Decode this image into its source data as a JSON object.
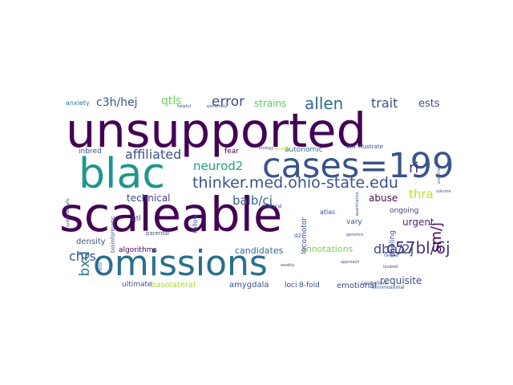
{
  "word_cloud": {
    "words": [
      {
        "text": "unsupported",
        "color": "#440154"
      },
      {
        "text": "scaleable",
        "color": "#440154"
      },
      {
        "text": "omissions",
        "color": "#2a6f8e"
      },
      {
        "text": "cases=199",
        "color": "#3a548c"
      },
      {
        "text": "blac",
        "color": "#1f968b"
      },
      {
        "text": "thinker.med.ohio-state.edu",
        "color": "#3b528b"
      },
      {
        "text": "c57bl/6j",
        "color": "#46337e"
      },
      {
        "text": "allen",
        "color": "#31688e"
      },
      {
        "text": "error",
        "color": "#3e4a89"
      },
      {
        "text": "affiliated",
        "color": "#3b528b"
      },
      {
        "text": "neurod2",
        "color": "#1fa187"
      },
      {
        "text": "balb/cj",
        "color": "#34618d"
      },
      {
        "text": "dba/2j",
        "color": "#3e4989"
      },
      {
        "text": "sm/j",
        "color": "#440154"
      },
      {
        "text": "bxd",
        "color": "#2a788e"
      },
      {
        "text": "chrs",
        "color": "#3b528b"
      },
      {
        "text": "c3h/hej",
        "color": "#39568c"
      },
      {
        "text": "qtls",
        "color": "#6ece58"
      },
      {
        "text": "trait",
        "color": "#3b528b"
      },
      {
        "text": "ests",
        "color": "#3b528b"
      },
      {
        "text": "ri",
        "color": "#46337e"
      },
      {
        "text": "thra",
        "color": "#bddf26"
      },
      {
        "text": "requisite",
        "color": "#3e4a89"
      },
      {
        "text": "strains",
        "color": "#5ec962"
      },
      {
        "text": "technical",
        "color": "#414487"
      },
      {
        "text": "abuse",
        "color": "#471063"
      },
      {
        "text": "urgent",
        "color": "#482878"
      },
      {
        "text": "annotations",
        "color": "#7ad151"
      },
      {
        "text": "candidates",
        "color": "#31688e"
      },
      {
        "text": "emotional",
        "color": "#3e4a89"
      },
      {
        "text": "basolateral",
        "color": "#a5db36"
      },
      {
        "text": "amygdala",
        "color": "#3b528b"
      },
      {
        "text": "loci",
        "color": "#443983"
      },
      {
        "text": "8-fold",
        "color": "#3b528b"
      },
      {
        "text": "ultimate",
        "color": "#3b528b"
      },
      {
        "text": "algorithms",
        "color": "#440154"
      },
      {
        "text": "density",
        "color": "#3b528b"
      },
      {
        "text": "inbred",
        "color": "#3b528b"
      },
      {
        "text": "fear",
        "color": "#440154"
      },
      {
        "text": "autonomic",
        "color": "#2d708e"
      },
      {
        "text": "ongoing",
        "color": "#433e85"
      },
      {
        "text": "pooling",
        "color": "#3b528b"
      },
      {
        "text": "locomotor",
        "color": "#3b528b"
      },
      {
        "text": "vary",
        "color": "#3b528b"
      },
      {
        "text": "qtl",
        "color": "#3b528b"
      },
      {
        "text": "follow",
        "color": "#3b528b"
      },
      {
        "text": "anxiety",
        "color": "#2a788e"
      },
      {
        "text": "atlas",
        "color": "#3b528b"
      },
      {
        "text": "chr",
        "color": "#3b528b"
      },
      {
        "text": "illustrate",
        "color": "#3b528b"
      },
      {
        "text": "d2",
        "color": "#3b528b"
      },
      {
        "text": "quality",
        "color": "#b5de2b"
      },
      {
        "text": "parental",
        "color": "#3b528b"
      },
      {
        "text": "cerebellum",
        "color": "#3b528b"
      },
      {
        "text": "chromosomal",
        "color": "#3b528b"
      },
      {
        "text": "bilateral",
        "color": "#3b528b"
      },
      {
        "text": "biology",
        "color": "#3b528b"
      },
      {
        "text": "ranged",
        "color": "#3b528b"
      },
      {
        "text": "located",
        "color": "#3b528b"
      },
      {
        "text": "volume",
        "color": "#3b528b"
      },
      {
        "text": "underlie",
        "color": "#3b528b"
      },
      {
        "text": "helpful",
        "color": "#3b528b"
      },
      {
        "text": "extremely",
        "color": "#3b528b"
      },
      {
        "text": "weakly",
        "color": "#3b528b"
      },
      {
        "text": "approach",
        "color": "#3b528b"
      },
      {
        "text": "genomic",
        "color": "#3b528b"
      },
      {
        "text": "quantitative",
        "color": "#3b528b"
      },
      {
        "text": "systematically",
        "color": "#3b528b"
      },
      {
        "text": "bioinformatic",
        "color": "#3b528b"
      },
      {
        "text": "efforts",
        "color": "#3b528b"
      }
    ]
  }
}
